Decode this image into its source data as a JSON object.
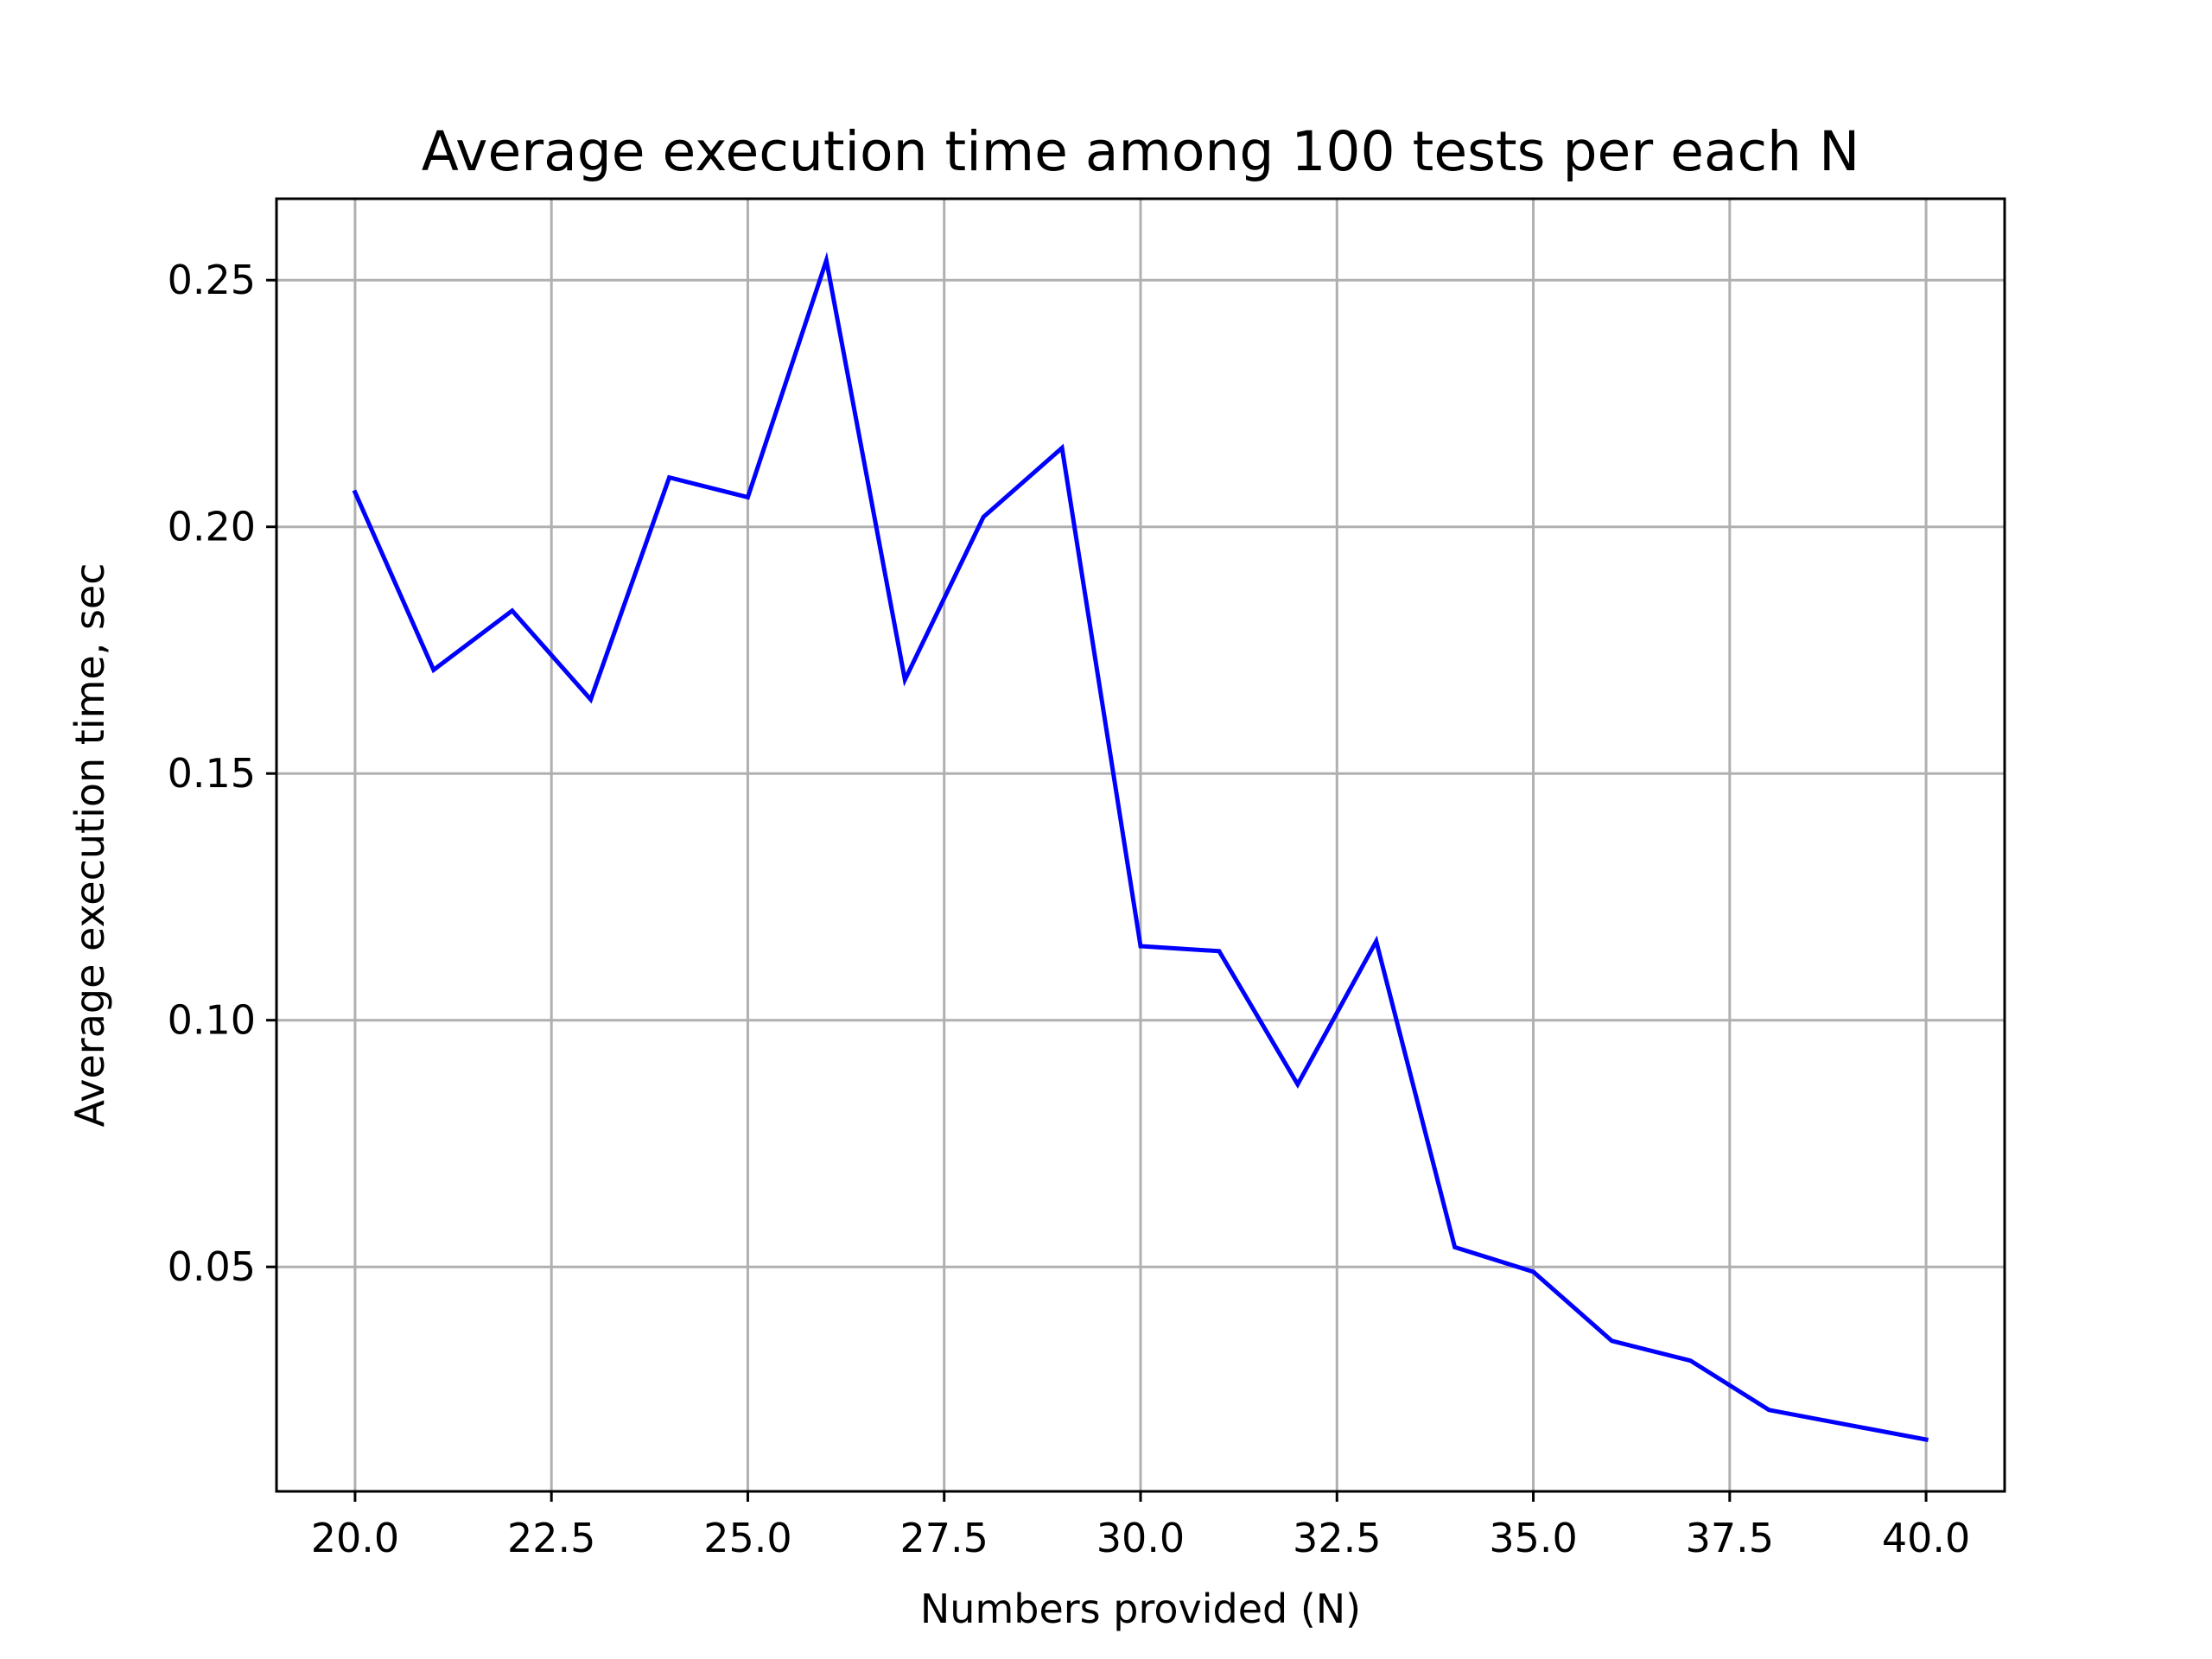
{
  "chart_data": {
    "type": "line",
    "title": "Average execution time among 100 tests per each N",
    "xlabel": "Numbers provided (N)",
    "ylabel": "Average execution time, sec",
    "xlim": [
      19.0,
      41.0
    ],
    "ylim": [
      0.0045,
      0.2665
    ],
    "xticks": [
      20.0,
      22.5,
      25.0,
      27.5,
      30.0,
      32.5,
      35.0,
      37.5,
      40.0
    ],
    "xtick_labels": [
      "20.0",
      "22.5",
      "25.0",
      "27.5",
      "30.0",
      "32.5",
      "35.0",
      "37.5",
      "40.0"
    ],
    "yticks": [
      0.05,
      0.1,
      0.15,
      0.2,
      0.25
    ],
    "ytick_labels": [
      "0.05",
      "0.10",
      "0.15",
      "0.20",
      "0.25"
    ],
    "grid": true,
    "legend": "none",
    "series": [
      {
        "color": "#0000ff",
        "x": [
          20,
          21,
          22,
          23,
          24,
          25,
          26,
          27,
          28,
          29,
          30,
          31,
          32,
          33,
          34,
          35,
          36,
          37,
          38,
          39,
          40
        ],
        "y": [
          0.207,
          0.171,
          0.183,
          0.165,
          0.21,
          0.206,
          0.254,
          0.169,
          0.202,
          0.216,
          0.115,
          0.114,
          0.087,
          0.116,
          0.054,
          0.049,
          0.035,
          0.031,
          0.021,
          0.018,
          0.015
        ]
      }
    ],
    "colors": {
      "grid": "#b0b0b0",
      "axes": "#000000",
      "background": "#ffffff"
    }
  }
}
